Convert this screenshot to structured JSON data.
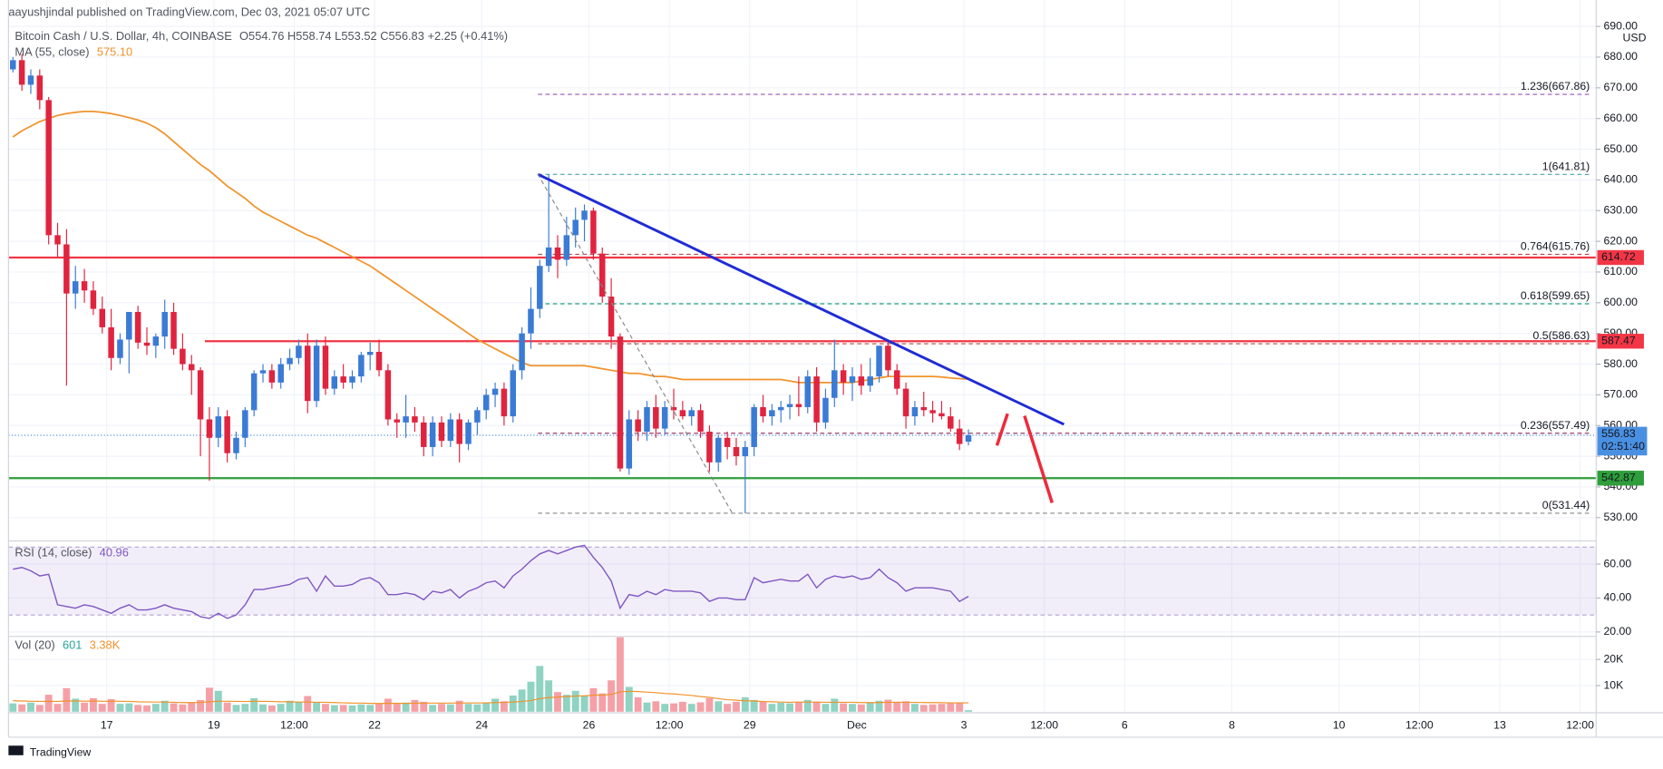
{
  "header": {
    "published": "aayushjindal published on TradingView.com, Dec 03, 2021 05:07 UTC",
    "symbol": "Bitcoin Cash / U.S. Dollar, 4h, COINBASE",
    "ohlc": [
      "O554.76",
      "H558.74",
      "L553.52",
      "C556.83",
      "+2.25 (+0.41%)"
    ]
  },
  "footer": "TradingView",
  "chart_data": [
    {
      "type": "candlestick",
      "unit": "USD",
      "grid": true,
      "up_color": "#3a7bd5",
      "down_color": "#e0243f",
      "xlim": [
        -0.5,
        177.3
      ],
      "xticks": [
        {
          "value": 10.5,
          "label": "17"
        },
        {
          "value": 22.5,
          "label": "19"
        },
        {
          "value": 31.5,
          "label": "12:00"
        },
        {
          "value": 40.5,
          "label": "22"
        },
        {
          "value": 52.5,
          "label": "24"
        },
        {
          "value": 64.5,
          "label": "26"
        },
        {
          "value": 73.5,
          "label": "12:00"
        },
        {
          "value": 82.5,
          "label": "29"
        },
        {
          "value": 94.5,
          "label": "Dec"
        },
        {
          "value": 106.5,
          "label": "3"
        },
        {
          "value": 115.5,
          "label": "12:00"
        },
        {
          "value": 124.5,
          "label": "6"
        },
        {
          "value": 136.5,
          "label": "8"
        },
        {
          "value": 148.5,
          "label": "10"
        },
        {
          "value": 157.5,
          "label": "12:00"
        },
        {
          "value": 166.5,
          "label": "13"
        },
        {
          "value": 175.5,
          "label": "12:00"
        }
      ],
      "ylim": [
        523.1,
        698.6
      ],
      "yticks": [
        {
          "value": 530,
          "label": "530.00"
        },
        {
          "value": 540,
          "label": "540.00"
        },
        {
          "value": 550,
          "label": "550.00"
        },
        {
          "value": 560,
          "label": "560.00"
        },
        {
          "value": 570,
          "label": "570.00"
        },
        {
          "value": 580,
          "label": "580.00"
        },
        {
          "value": 590,
          "label": "590.00"
        },
        {
          "value": 600,
          "label": "600.00"
        },
        {
          "value": 610,
          "label": "610.00"
        },
        {
          "value": 620,
          "label": "620.00"
        },
        {
          "value": 630,
          "label": "630.00"
        },
        {
          "value": 640,
          "label": "640.00"
        },
        {
          "value": 650,
          "label": "650.00"
        },
        {
          "value": 660,
          "label": "660.00"
        },
        {
          "value": 670,
          "label": "670.00"
        },
        {
          "value": 680,
          "label": "680.00"
        },
        {
          "value": 690,
          "label": "690.00"
        }
      ],
      "open": [
        676,
        679,
        671,
        674,
        666,
        622,
        619,
        603,
        607,
        604,
        598,
        592,
        582,
        588,
        597,
        587,
        586,
        589,
        597,
        585,
        580,
        578,
        562,
        556,
        563,
        551,
        556,
        565,
        577,
        578,
        574,
        580,
        582,
        586,
        568,
        586,
        572,
        576,
        574,
        576,
        583,
        584,
        578,
        562,
        561,
        563,
        561,
        553,
        561,
        555,
        562,
        554,
        561,
        565,
        570,
        572,
        563,
        578,
        590,
        598,
        612,
        618,
        614,
        622,
        627,
        630,
        616,
        602,
        589,
        546,
        562,
        558,
        566,
        559,
        566,
        565,
        563,
        565,
        558,
        548,
        556,
        553,
        550,
        553,
        566,
        563,
        565,
        566,
        567,
        566,
        576,
        561,
        569,
        578,
        574,
        576,
        573,
        576,
        586,
        578,
        572,
        563,
        566,
        565,
        564,
        563,
        559,
        554.76
      ],
      "high": [
        680,
        681,
        676,
        676,
        667,
        626,
        624,
        612,
        611,
        607,
        602,
        598,
        590,
        597,
        599,
        592,
        590,
        601,
        600,
        590,
        583,
        579,
        566,
        566,
        565,
        558,
        566,
        578,
        580,
        580,
        582,
        585,
        588,
        590,
        588,
        589,
        578,
        580,
        578,
        584,
        587,
        588,
        580,
        564,
        570,
        566,
        563,
        563,
        563,
        564,
        564,
        562,
        566,
        572,
        574,
        574,
        580,
        592,
        605,
        614,
        641.81,
        622,
        628,
        631,
        632,
        631,
        618,
        608,
        590,
        565,
        565,
        568,
        570,
        568,
        572,
        568,
        566,
        567,
        560,
        557,
        558,
        556,
        555,
        567,
        570,
        567,
        568,
        570,
        576,
        578,
        579,
        572,
        588,
        580,
        579,
        580,
        582,
        586,
        588,
        580,
        574,
        568,
        571,
        568,
        568,
        566,
        562,
        558.74
      ],
      "low": [
        675,
        669,
        668,
        663,
        619,
        615,
        573,
        598,
        600,
        596,
        590,
        578,
        580,
        577,
        585,
        583,
        582,
        585,
        583,
        578,
        570,
        550,
        542,
        553,
        548,
        549,
        553,
        563,
        574,
        572,
        572,
        578,
        580,
        564,
        566,
        570,
        570,
        572,
        572,
        574,
        578,
        576,
        560,
        556,
        556,
        558,
        550,
        550,
        553,
        553,
        548,
        552,
        557,
        562,
        566,
        560,
        561,
        575,
        585,
        595,
        610,
        608,
        612,
        618,
        620,
        614,
        600,
        585,
        545,
        544,
        555,
        555,
        556,
        557,
        562,
        562,
        560,
        556,
        545,
        545,
        549,
        547,
        531.44,
        550,
        561,
        560,
        561,
        562,
        563,
        564,
        558,
        559,
        566,
        570,
        568,
        570,
        571,
        574,
        576,
        570,
        559,
        560,
        563,
        561,
        562,
        558,
        552,
        553.52
      ],
      "close": [
        679,
        671,
        674,
        666,
        622,
        619,
        603,
        607,
        604,
        598,
        592,
        582,
        588,
        597,
        587,
        586,
        589,
        597,
        585,
        580,
        578,
        562,
        556,
        563,
        551,
        556,
        565,
        577,
        578,
        574,
        580,
        582,
        586,
        568,
        586,
        572,
        576,
        574,
        576,
        583,
        584,
        578,
        562,
        561,
        563,
        561,
        553,
        561,
        555,
        562,
        554,
        561,
        565,
        570,
        572,
        563,
        578,
        590,
        598,
        612,
        618,
        614,
        622,
        627,
        630,
        616,
        602,
        589,
        546,
        562,
        558,
        566,
        559,
        566,
        565,
        563,
        565,
        558,
        548,
        556,
        553,
        550,
        553,
        566,
        563,
        565,
        566,
        567,
        566,
        576,
        561,
        569,
        578,
        574,
        576,
        573,
        576,
        586,
        578,
        572,
        563,
        566,
        565,
        564,
        563,
        559,
        554,
        556.83
      ],
      "ma": {
        "name": "MA (55, close)",
        "value_label": "575.10",
        "color": "#f0932b",
        "values": [
          654,
          656,
          657.5,
          659,
          660,
          661,
          661.6,
          662,
          662.3,
          662.3,
          662,
          661.6,
          661,
          660.3,
          659.5,
          658.5,
          657,
          655,
          652.5,
          650,
          647.5,
          645,
          643,
          640.5,
          638,
          636,
          634,
          631.5,
          629.5,
          628,
          626.5,
          625,
          623.5,
          622,
          621,
          619.5,
          618,
          616.5,
          615,
          613.5,
          612,
          610,
          608,
          606,
          604,
          602,
          600,
          598,
          596,
          594,
          592,
          590,
          588,
          586.5,
          585,
          583.5,
          582,
          580.5,
          579.5,
          579.5,
          579.5,
          579.5,
          579.5,
          579.5,
          579.5,
          579,
          578.5,
          578,
          577.5,
          577,
          577,
          576.5,
          576,
          576,
          575.5,
          575,
          575,
          575,
          575,
          575,
          575,
          575,
          575,
          575,
          575,
          575,
          575,
          574.5,
          574,
          574,
          574,
          574,
          574,
          574,
          574,
          574.5,
          575,
          575.5,
          576,
          576,
          576,
          576,
          576,
          576,
          575.8,
          575.5,
          575.3,
          575.1
        ]
      },
      "fib": {
        "x": 58.8,
        "levels": [
          {
            "label": "1.236(667.86)",
            "value": 667.86,
            "color": "#9c4fb8"
          },
          {
            "label": "1(641.81)",
            "value": 641.81,
            "color": "#4fa3b8"
          },
          {
            "label": "0.764(615.76)",
            "value": 615.76,
            "color": "#b24a4a"
          },
          {
            "label": "0.618(599.65)",
            "value": 599.65,
            "color": "#1fa07f"
          },
          {
            "label": "0.5(586.63)",
            "value": 586.63,
            "color": "#b24a4a"
          },
          {
            "label": "0.236(557.49)",
            "value": 557.49,
            "color": "#9a3b6b"
          },
          {
            "label": "0(531.44)",
            "value": 531.44,
            "color": "#888888"
          }
        ]
      },
      "levels": [
        {
          "value": 614.72,
          "color": "#f23645"
        },
        {
          "value": 587.47,
          "color": "#f23645",
          "x": 21.5
        },
        {
          "value": 542.87,
          "color": "#2e9e3a"
        }
      ],
      "trendline": {
        "x": [
          58.8,
          117.7
        ],
        "y": [
          641.8,
          560.4
        ],
        "color": "#1f2bd6"
      },
      "last_price": {
        "value": 556.83,
        "countdown": "02:51:40",
        "color": "#4a90e2"
      }
    },
    {
      "type": "line",
      "name": "RSI (14, close)",
      "value_label": "40.96",
      "color": "#7e57c2",
      "band": [
        30,
        70
      ],
      "ylim": [
        18,
        73
      ],
      "yticks": [
        {
          "value": 20,
          "label": "20.00"
        },
        {
          "value": 40,
          "label": "40.00"
        },
        {
          "value": 60,
          "label": "60.00"
        }
      ],
      "values": [
        57,
        58,
        56,
        53,
        54,
        36,
        35,
        34,
        36,
        35,
        33,
        31,
        34,
        36,
        33,
        33,
        34,
        36,
        34,
        33,
        32,
        29,
        28,
        31,
        28,
        30,
        36,
        45,
        45,
        46,
        47,
        48,
        51,
        52,
        44,
        53,
        47,
        47,
        48,
        51,
        52,
        49,
        42,
        42,
        43,
        42,
        39,
        44,
        43,
        45,
        40,
        44,
        46,
        49,
        50,
        46,
        53,
        57,
        62,
        66,
        68,
        66,
        68,
        70,
        71,
        64,
        58,
        50,
        34,
        42,
        41,
        44,
        42,
        45,
        44,
        44,
        44,
        43,
        38,
        40,
        40,
        39,
        39,
        52,
        49,
        50,
        51,
        50,
        50,
        54,
        46,
        51,
        53,
        52,
        53,
        51,
        52,
        57,
        52,
        49,
        44,
        46,
        46,
        46,
        45,
        44,
        38,
        40.96
      ]
    },
    {
      "type": "bar",
      "name": "Vol (20)",
      "value_label": "601",
      "up_color": "#8fd3c2",
      "down_color": "#f5a0a6",
      "ylim": [
        0,
        28400
      ],
      "yticks": [
        {
          "value": 10000,
          "label": "10K"
        },
        {
          "value": 20000,
          "label": "20K"
        }
      ],
      "values": [
        3200,
        2800,
        3500,
        2600,
        6500,
        3000,
        9000,
        5000,
        3500,
        5200,
        3000,
        4800,
        3000,
        3200,
        2600,
        2400,
        3000,
        4200,
        3200,
        2800,
        3500,
        4500,
        9200,
        8000,
        3500,
        2600,
        3000,
        5200,
        2800,
        2400,
        3000,
        4200,
        3800,
        6000,
        3400,
        3000,
        2500,
        2600,
        2400,
        2800,
        2600,
        3200,
        5000,
        3000,
        3500,
        4500,
        3800,
        2600,
        3000,
        2800,
        4200,
        3000,
        2800,
        3400,
        5000,
        4000,
        6200,
        8500,
        11500,
        17500,
        12000,
        7500,
        6500,
        8000,
        6000,
        9000,
        7000,
        12000,
        28500,
        9500,
        5500,
        3500,
        4000,
        3000,
        3200,
        3800,
        3000,
        3600,
        5200,
        4000,
        3000,
        3800,
        5500,
        4500,
        4000,
        3000,
        3400,
        3200,
        3600,
        4500,
        3800,
        3000,
        5000,
        3200,
        3000,
        2800,
        3400,
        4200,
        4600,
        3800,
        4000,
        3000,
        2600,
        2800,
        3000,
        3200,
        3500,
        601
      ],
      "ma": {
        "value_label": "3.38K",
        "color": "#f0932b",
        "values": [
          4200,
          4100,
          4000,
          3950,
          4000,
          3950,
          4100,
          4100,
          4050,
          4100,
          4000,
          4050,
          4000,
          3950,
          3800,
          3750,
          3700,
          3700,
          3600,
          3500,
          3500,
          3550,
          3800,
          4000,
          4000,
          3950,
          3900,
          4000,
          3950,
          3900,
          3800,
          3800,
          3700,
          3700,
          3600,
          3600,
          3500,
          3400,
          3300,
          3300,
          3200,
          3150,
          3200,
          3200,
          3200,
          3250,
          3300,
          3300,
          3300,
          3300,
          3350,
          3350,
          3350,
          3400,
          3500,
          3550,
          3700,
          3900,
          4300,
          5000,
          5400,
          5600,
          5800,
          6000,
          6100,
          6300,
          6400,
          6600,
          7600,
          7800,
          7700,
          7500,
          7300,
          7000,
          6800,
          6500,
          6200,
          5800,
          5500,
          5000,
          4600,
          4400,
          4200,
          4100,
          3900,
          3800,
          3700,
          3600,
          3700,
          3700,
          3700,
          3600,
          3600,
          3600,
          3600,
          3500,
          3500,
          3500,
          3600,
          3600,
          3600,
          3550,
          3500,
          3500,
          3450,
          3400,
          3400,
          3380
        ]
      }
    }
  ]
}
